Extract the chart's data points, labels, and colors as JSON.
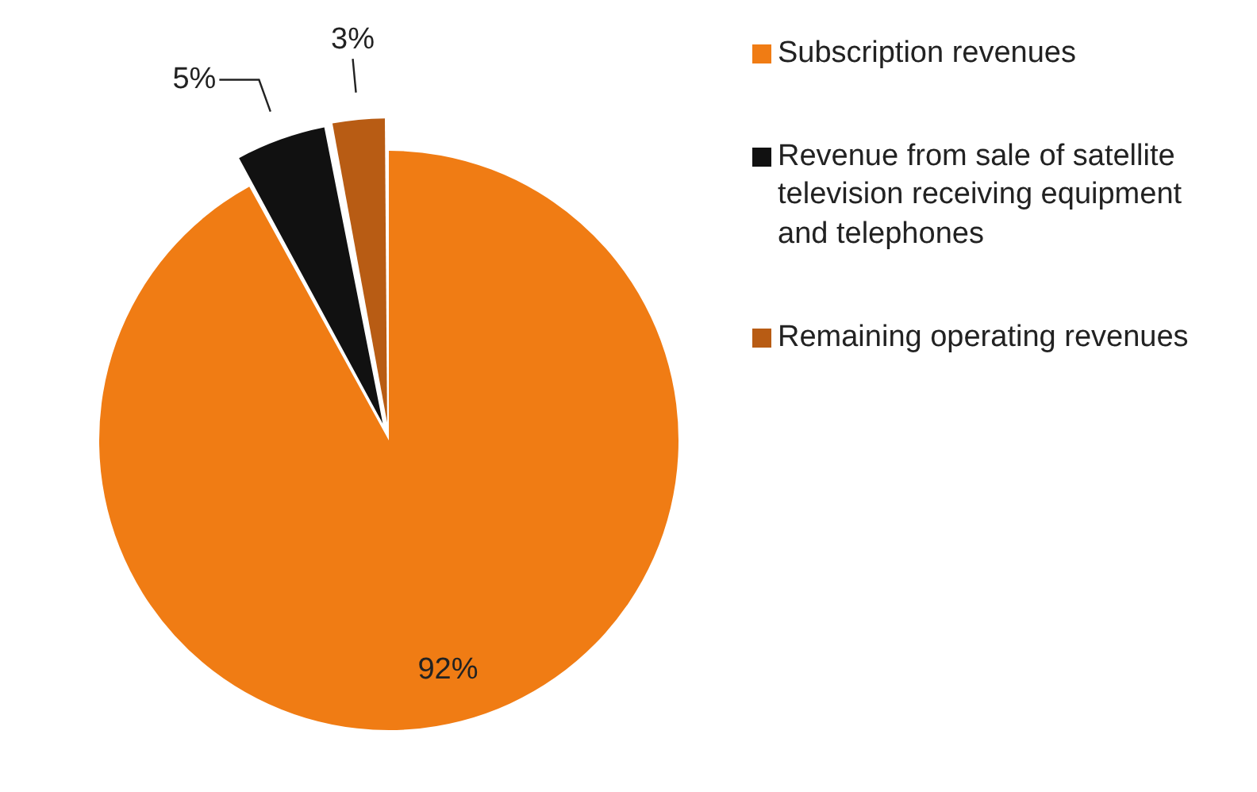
{
  "chart_data": {
    "type": "pie",
    "categories": [
      "Subscription revenues",
      "Revenue from sale of satellite television receiving equipment and telephones",
      "Remaining operating revenues"
    ],
    "values": [
      92,
      5,
      3
    ],
    "colors": [
      "#f07c14",
      "#111111",
      "#b85c14"
    ],
    "value_labels": [
      "92%",
      "5%",
      "3%"
    ],
    "legend": "right"
  }
}
